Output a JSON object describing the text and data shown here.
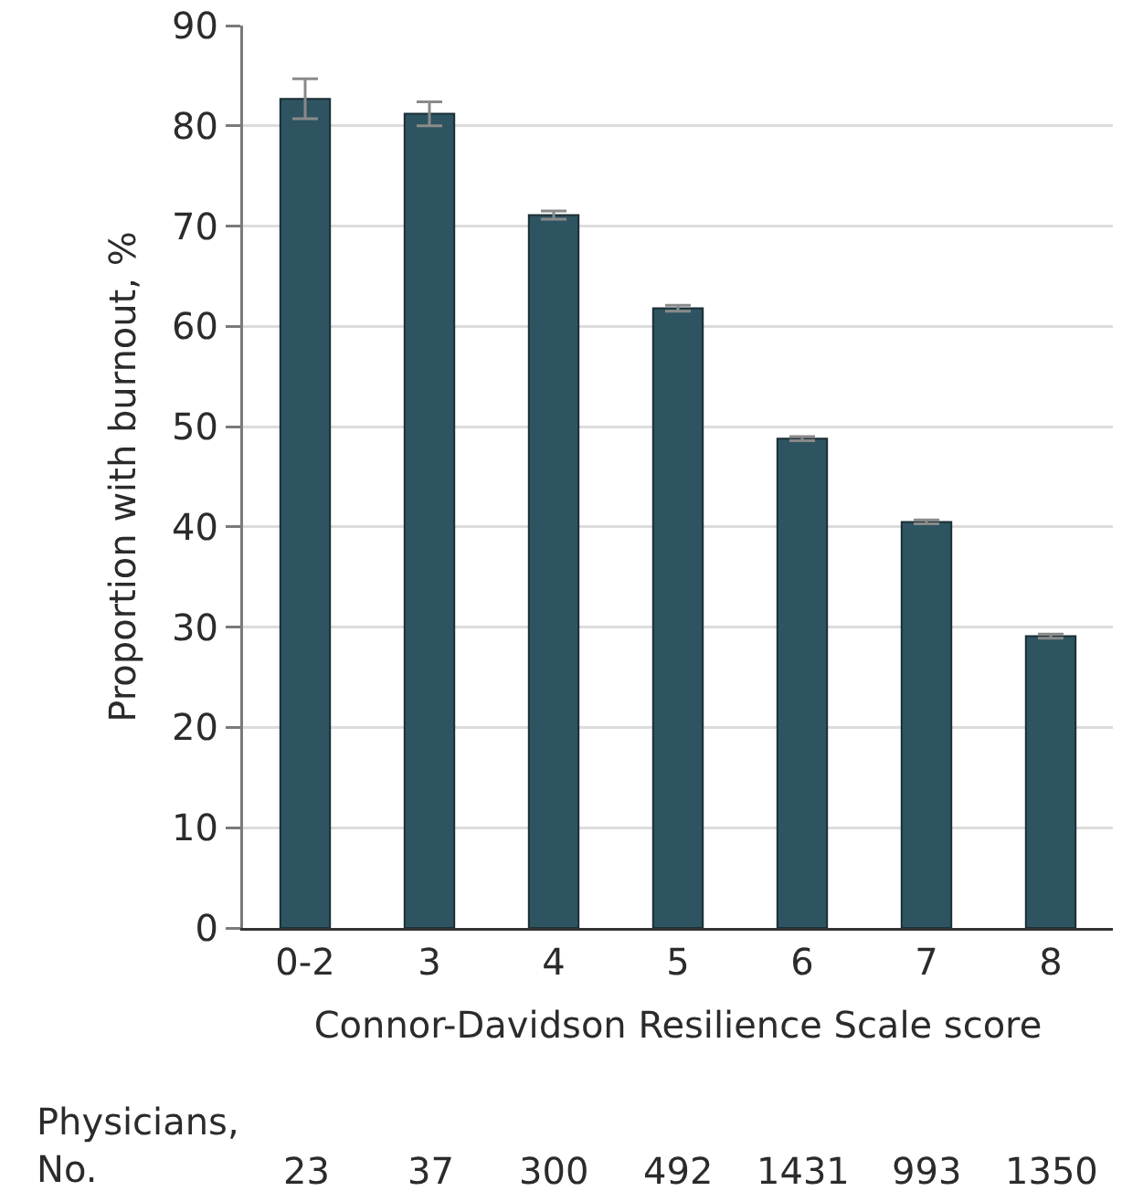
{
  "chart_data": {
    "type": "bar",
    "xlabel": "Connor-Davidson Resilience Scale score",
    "ylabel": "Proportion with burnout, %",
    "categories": [
      "0-2",
      "3",
      "4",
      "5",
      "6",
      "7",
      "8"
    ],
    "values": [
      82.7,
      81.2,
      71.1,
      61.8,
      48.8,
      40.5,
      29.1
    ],
    "errors": [
      2.0,
      1.2,
      0.4,
      0.3,
      0.2,
      0.2,
      0.2
    ],
    "color": "#2e5461",
    "ylim": [
      0,
      90
    ],
    "yticks": [
      0,
      10,
      20,
      30,
      40,
      50,
      60,
      70,
      80,
      90
    ],
    "grid": "y",
    "annotations": [
      "Physicians,\nNo.",
      "23",
      "37",
      "300",
      "492",
      "1431",
      "993",
      "1350"
    ]
  }
}
